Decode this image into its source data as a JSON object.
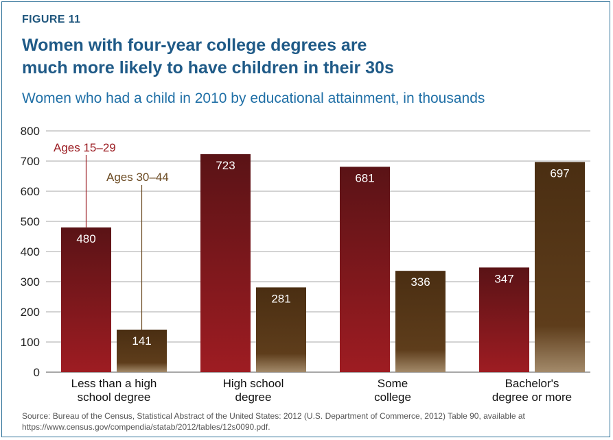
{
  "figure": {
    "label": "FIGURE 11",
    "title_lines": [
      "Women with four-year college degrees are",
      "much more likely to have children in their 30s"
    ],
    "subtitle": "Women who had a child in 2010 by educational attainment, in thousands"
  },
  "chart_data": {
    "type": "bar",
    "title": "Women with four-year college degrees are much more likely to have children in their 30s",
    "subtitle": "Women who had a child in 2010 by educational attainment, in thousands",
    "categories": [
      [
        "Less than a high",
        "school degree"
      ],
      [
        "High school",
        "degree"
      ],
      [
        "Some",
        "college"
      ],
      [
        "Bachelor's",
        "degree or more"
      ]
    ],
    "series": [
      {
        "name": "Ages 15–29",
        "values": [
          480,
          723,
          681,
          347
        ],
        "color": "#8c1a1e"
      },
      {
        "name": "Ages 30–44",
        "values": [
          141,
          281,
          336,
          697
        ],
        "color": "#5b3a18"
      }
    ],
    "ylim": [
      0,
      800
    ],
    "yticks": [
      0,
      100,
      200,
      300,
      400,
      500,
      600,
      700,
      800
    ],
    "grid": true,
    "legend": "annotation labels above first category"
  },
  "source": "Source: Bureau of the Census, Statistical Abstract of the United States: 2012 (U.S. Department of Commerce, 2012) Table 90, available at https://www.census.gov/compendia/statab/2012/tables/12s0090.pdf.",
  "colors": {
    "frame": "#2b6f97",
    "title": "#1f5a87",
    "series1_label": "#9b1c22",
    "series2_label": "#6b4a22"
  }
}
